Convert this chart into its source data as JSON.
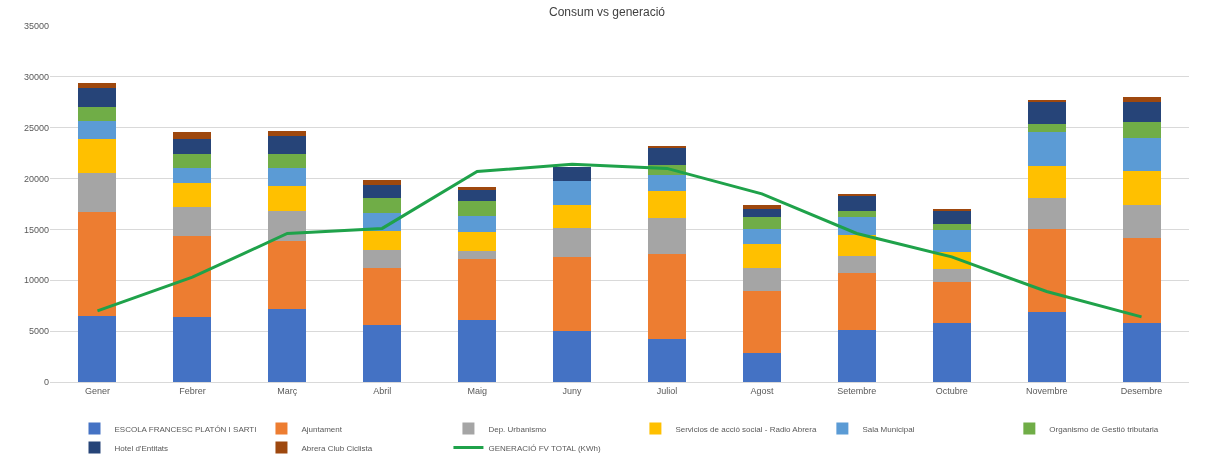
{
  "chart_data": {
    "type": "bar",
    "title": "Consum vs generació",
    "stacked": true,
    "categories": [
      "Gener",
      "Febrer",
      "Març",
      "Abril",
      "Maig",
      "Juny",
      "Juliol",
      "Agost",
      "Setembre",
      "Octubre",
      "Novembre",
      "Desembre"
    ],
    "series": [
      {
        "name": "ESCOLA FRANCESC PLATÓN I SARTI",
        "color": "#4472c4",
        "values": [
          6500,
          6400,
          7200,
          5650,
          6050,
          5000,
          4250,
          2900,
          5150,
          5800,
          6900,
          5800
        ]
      },
      {
        "name": "Ajuntament",
        "color": "#ed7d31",
        "values": [
          10200,
          7950,
          6650,
          5600,
          6000,
          7250,
          8300,
          6000,
          5600,
          4000,
          8150,
          8400
        ]
      },
      {
        "name": "Dep. Urbanismo",
        "color": "#a5a5a5",
        "values": [
          3800,
          2850,
          3000,
          1750,
          850,
          2850,
          3550,
          2300,
          1650,
          1350,
          3000,
          3200
        ]
      },
      {
        "name": "Servicios de acció social - Radio Abrera",
        "color": "#ffc000",
        "values": [
          3350,
          2400,
          2450,
          1850,
          1800,
          2350,
          2700,
          2400,
          2050,
          1650,
          3200,
          3350
        ]
      },
      {
        "name": "Sala Municipal",
        "color": "#5b9bd5",
        "values": [
          1800,
          1400,
          1700,
          1800,
          1650,
          2300,
          1550,
          1450,
          1800,
          2150,
          3350,
          3200
        ]
      },
      {
        "name": "Organismo de Gestió tributaria",
        "color": "#70ad47",
        "values": [
          1350,
          1450,
          1400,
          1450,
          1400,
          0,
          950,
          1150,
          600,
          600,
          750,
          1600
        ]
      },
      {
        "name": "Hotel d'Entitats",
        "color": "#264478",
        "values": [
          1950,
          1450,
          1750,
          1300,
          1100,
          1400,
          1800,
          800,
          1500,
          1300,
          2200,
          1950
        ]
      },
      {
        "name": "Abrera Club Ciclista",
        "color": "#9e480e",
        "values": [
          450,
          650,
          550,
          450,
          350,
          0,
          100,
          400,
          150,
          200,
          100,
          500
        ]
      },
      {
        "name": "GENERACIÓ FV TOTAL (KWh)",
        "type": "line",
        "color": "#1fa24a",
        "values": [
          7000,
          10300,
          14600,
          15100,
          20700,
          21400,
          21000,
          18500,
          14600,
          12300,
          8900,
          6400
        ]
      }
    ],
    "ylim": [
      0,
      35000
    ],
    "yticks": [
      0,
      5000,
      10000,
      15000,
      20000,
      25000,
      30000,
      35000
    ],
    "grid": "y",
    "legend": "bottom",
    "marker": "none",
    "line_style": "solid"
  }
}
